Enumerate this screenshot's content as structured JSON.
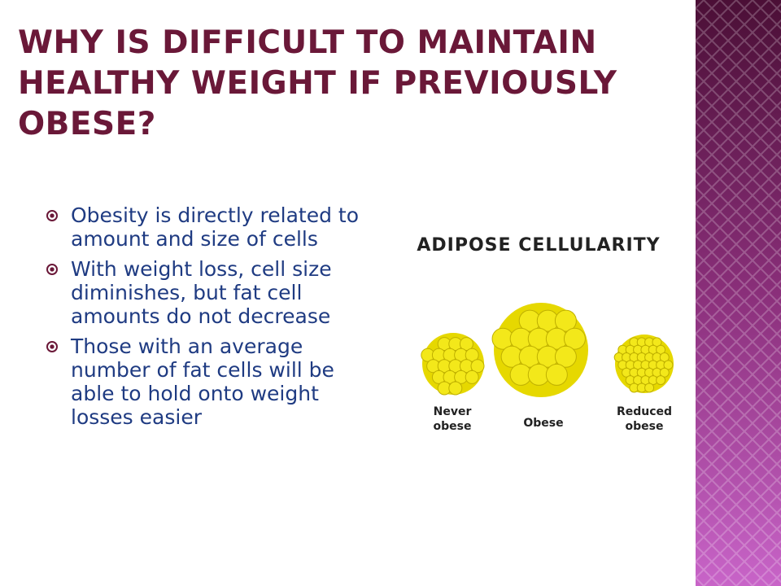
{
  "slide": {
    "title": "WHY IS DIFFICULT TO MAINTAIN HEALTHY WEIGHT IF PREVIOUSLY OBESE?",
    "bullets": [
      "Obesity is directly related to amount and size of cells",
      "With weight loss, cell size diminishes, but fat cell amounts do not decrease",
      "Those with an average number of fat cells will be able to hold onto weight losses easier"
    ],
    "figure": {
      "title": "ADIPOSE CELLULARITY",
      "labels": [
        "Never obese",
        "Obese",
        "Reduced obese"
      ]
    }
  }
}
